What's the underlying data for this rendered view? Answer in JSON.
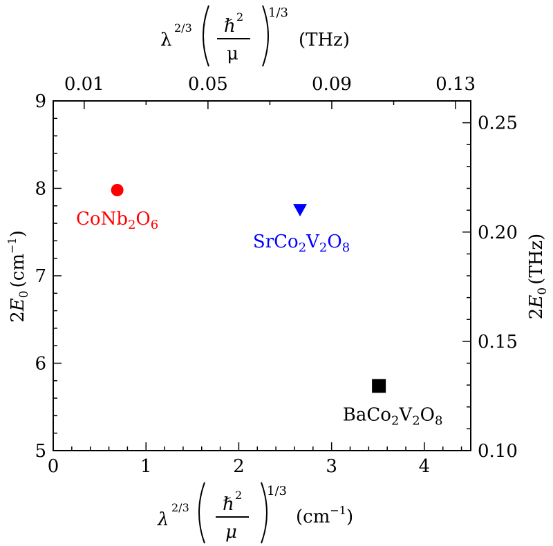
{
  "chart_data": {
    "type": "scatter",
    "title": "",
    "x_axis_bottom": {
      "label_parts": {
        "lambda": "λ",
        "exp23": "2/3",
        "hbar": "ℏ",
        "sq": "2",
        "mu": "μ",
        "exp13": "1/3",
        "unit_open": "(cm",
        "unit_exp": "−1",
        "unit_close": ")"
      },
      "range": [
        0,
        4.5
      ],
      "ticks": [
        0,
        1,
        2,
        3,
        4
      ],
      "tick_labels": [
        "0",
        "1",
        "2",
        "3",
        "4"
      ]
    },
    "x_axis_top": {
      "label_parts": {
        "lambda": "λ",
        "exp23": "2/3",
        "hbar": "ℏ",
        "sq": "2",
        "mu": "μ",
        "exp13": "1/3",
        "unit": "(THz)"
      },
      "range_thz": [
        0,
        0.1349
      ],
      "ticks": [
        0.01,
        0.05,
        0.09,
        0.13
      ],
      "tick_labels": [
        "0.01",
        "0.05",
        "0.09",
        "0.13"
      ]
    },
    "y_axis_left": {
      "label_parts": {
        "num": "2",
        "E": "E",
        "sub": "0",
        "unit_open": "(cm",
        "unit_exp": "−1",
        "unit_close": ")"
      },
      "range": [
        5,
        9
      ],
      "ticks": [
        5,
        6,
        7,
        8,
        9
      ],
      "tick_labels": [
        "5",
        "6",
        "7",
        "8",
        "9"
      ]
    },
    "y_axis_right": {
      "label_parts": {
        "num": "2",
        "E": "E",
        "sub": "0",
        "unit": "(THz)"
      },
      "range_thz": [
        0.1,
        0.26
      ],
      "ticks": [
        0.1,
        0.15,
        0.2,
        0.25
      ],
      "tick_labels": [
        "0.10",
        "0.15",
        "0.20",
        "0.25"
      ]
    },
    "grid": false,
    "points": [
      {
        "name_parts": [
          "CoNb",
          "2",
          "O",
          "6"
        ],
        "x": 0.69,
        "y": 7.98,
        "marker": "circle",
        "color": "#ff0000"
      },
      {
        "name_parts": [
          "SrCo",
          "2",
          "V",
          "2",
          "O",
          "8"
        ],
        "x": 2.66,
        "y": 7.75,
        "marker": "triangle-down",
        "color": "#0000ff"
      },
      {
        "name_parts": [
          "BaCo",
          "2",
          "V",
          "2",
          "O",
          "8"
        ],
        "x": 3.51,
        "y": 5.74,
        "marker": "square",
        "color": "#000000"
      }
    ]
  }
}
